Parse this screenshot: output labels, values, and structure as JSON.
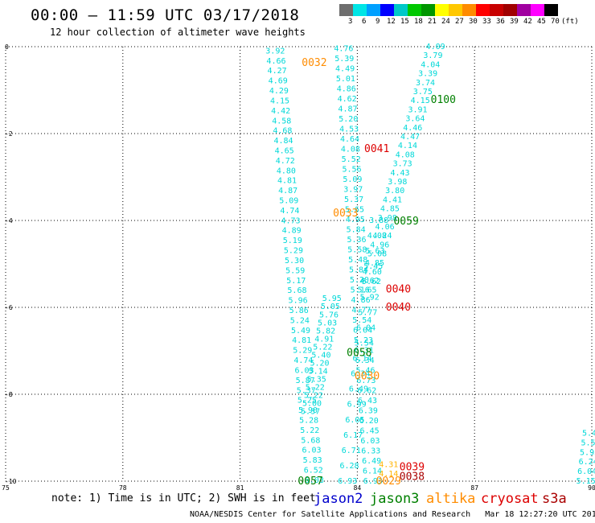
{
  "header": {
    "title": "00:00 – 11:59 UTC 03/17/2018",
    "subtitle": "12 hour collection of altimeter wave heights"
  },
  "colorbar": {
    "unit": "(ft)",
    "labels": [
      "3",
      "6",
      "9",
      "12",
      "15",
      "18",
      "21",
      "24",
      "27",
      "30",
      "33",
      "36",
      "39",
      "42",
      "45",
      "70"
    ],
    "colors": [
      "#6e6e6e",
      "#00e5e5",
      "#00a0ff",
      "#0000ff",
      "#00c8c8",
      "#00c800",
      "#009600",
      "#ffff00",
      "#ffc800",
      "#ff8c00",
      "#ff0000",
      "#c80000",
      "#a00000",
      "#a000a0",
      "#ff00ff",
      "#000000"
    ]
  },
  "map": {
    "lon_min": 75,
    "lon_max": 90,
    "lat_min": -10,
    "lat_max": 0,
    "x_ticks": [
      {
        "value": 75,
        "label": "75"
      },
      {
        "value": 78,
        "label": "78"
      },
      {
        "value": 81,
        "label": "81"
      },
      {
        "value": 84,
        "label": "84"
      },
      {
        "value": 87,
        "label": "87"
      },
      {
        "value": 90,
        "label": "90"
      }
    ],
    "y_ticks": [
      {
        "value": 0,
        "label": "0"
      },
      {
        "value": -2,
        "label": "-2"
      },
      {
        "value": -4,
        "label": "-4"
      },
      {
        "value": -6,
        "label": "-6"
      },
      {
        "value": -8,
        "label": "-8"
      },
      {
        "value": -10,
        "label": "-10"
      }
    ],
    "track_colors": {
      "jason2": "#0000cc",
      "jason3": "#008000",
      "altika": "#ff8c00",
      "cryosat": "#dd0000",
      "s3a": "#aa0000"
    },
    "track_labels": [
      {
        "text": "0032",
        "lon": 82.9,
        "lat": -0.37,
        "color": "#ff8c00"
      },
      {
        "text": "0100",
        "lon": 86.2,
        "lat": -1.22,
        "color": "#008000"
      },
      {
        "text": "0041",
        "lon": 84.5,
        "lat": -2.35,
        "color": "#dd0000"
      },
      {
        "text": "0033",
        "lon": 83.7,
        "lat": -3.83,
        "color": "#ff8c00"
      },
      {
        "text": "0059",
        "lon": 85.25,
        "lat": -4.02,
        "color": "#008000"
      },
      {
        "text": "0040",
        "lon": 85.05,
        "lat": -5.58,
        "color": "#dd0000"
      },
      {
        "text": "0040",
        "lon": 85.05,
        "lat": -6.0,
        "color": "#dd0000"
      },
      {
        "text": "0058",
        "lon": 84.05,
        "lat": -7.05,
        "color": "#008000"
      },
      {
        "text": "0030",
        "lon": 84.25,
        "lat": -7.58,
        "color": "#ff8c00"
      },
      {
        "text": "0039",
        "lon": 85.4,
        "lat": -9.68,
        "color": "#dd0000"
      },
      {
        "text": "0038",
        "lon": 85.4,
        "lat": -9.9,
        "color": "#aa0000"
      },
      {
        "text": "0057",
        "lon": 82.8,
        "lat": -10.0,
        "color": "#008000"
      },
      {
        "text": "0029",
        "lon": 84.8,
        "lat": -10.0,
        "color": "#ff8c00"
      }
    ],
    "sh_color": "#00d8d8",
    "sh_color_alt": "#ffb300",
    "tracks": [
      {
        "id": "left-track",
        "values": [
          "3.92",
          "4.66",
          "4.27",
          "4.69",
          "4.29",
          "4.15",
          "4.42",
          "4.58",
          "4.68",
          "4.84",
          "4.65",
          "4.72",
          "4.80",
          "4.81",
          "4.87",
          "5.09",
          "4.74",
          "4.73",
          "4.89",
          "5.19",
          "5.29",
          "5.30",
          "5.59",
          "5.17",
          "5.68",
          "5.96",
          "5.86",
          "5.24",
          "5.49",
          "4.81",
          "5.29",
          "4.74",
          "6.03",
          "5.87",
          "5.37",
          "5.25",
          "5.90",
          "5.28",
          "5.22",
          "5.68",
          "6.03",
          "5.83",
          "6.52",
          "6.03"
        ],
        "points": [
          {
            "lon": 81.9,
            "lat": -0.1
          },
          {
            "lon": 82.9,
            "lat": -9.98
          }
        ]
      },
      {
        "id": "center-left-track",
        "values": [
          "4.76",
          "5.39",
          "4.49",
          "5.01",
          "4.86",
          "4.62",
          "4.87",
          "5.20",
          "4.53",
          "4.64",
          "4.08",
          "5.52",
          "5.56",
          "5.09",
          "3.97",
          "5.37",
          "5.65",
          "4.95",
          "5.84",
          "5.36",
          "5.58",
          "5.48",
          "5.84",
          "5.20",
          "5.16",
          "4.86",
          "4.77",
          "5.54",
          "6.04",
          "5.23",
          "6.31",
          "6.34",
          "5.46",
          "6.73",
          "6.62",
          "6.43",
          "6.39",
          "6.20",
          "6.45",
          "6.03",
          "6.33",
          "6.49",
          "6.14",
          "6.93"
        ],
        "points": [
          {
            "lon": 83.65,
            "lat": -0.05
          },
          {
            "lon": 84.4,
            "lat": -10.0
          }
        ]
      },
      {
        "id": "center-track-2",
        "values": [
          "3.88",
          "4.08",
          "5.63",
          "5.45",
          "5.62",
          "5.92",
          "5.77",
          "6.04",
          "5.54",
          "6.14",
          "6.34",
          "6.49",
          "6.99",
          "6.05",
          "6.17",
          "6.71",
          "6.28",
          "6.93"
        ],
        "points": [
          {
            "lon": 84.55,
            "lat": -4.0
          },
          {
            "lon": 83.75,
            "lat": -10.0
          }
        ]
      },
      {
        "id": "right-ascending-track",
        "values": [
          "4.09",
          "3.79",
          "4.04",
          "3.39",
          "3.74",
          "3.75",
          "4.15",
          "3.91",
          "3.64",
          "4.46",
          "4.47",
          "4.14",
          "4.08",
          "3.73",
          "4.43",
          "3.98",
          "3.80",
          "4.41",
          "4.85",
          "3.98",
          "4.06",
          "4.24",
          "4.96",
          "5.08",
          "4.85",
          "4.60",
          "4.62",
          "5.65"
        ],
        "points": [
          {
            "lon": 86.0,
            "lat": 0.0
          },
          {
            "lon": 84.25,
            "lat": -5.6
          }
        ]
      },
      {
        "id": "center-right-track",
        "values": [
          "5.95",
          "5.05",
          "5.76",
          "5.03",
          "5.82",
          "4.91",
          "5.22",
          "5.40",
          "5.20",
          "5.14",
          "5.35",
          "5.22",
          "5.22",
          "5.00",
          "5.37"
        ],
        "points": [
          {
            "lon": 83.35,
            "lat": -5.8
          },
          {
            "lon": 82.8,
            "lat": -8.4
          }
        ]
      },
      {
        "id": "far-right-track",
        "values": [
          "5.15",
          "6.04",
          "6.24",
          "5.93",
          "5.53",
          "5.44"
        ],
        "points": [
          {
            "lon": 89.85,
            "lat": -10.0
          },
          {
            "lon": 90.0,
            "lat": -8.9
          }
        ]
      }
    ],
    "altika_values": [
      {
        "text": "4.31",
        "lon": 84.8,
        "lat": -9.62
      },
      {
        "text": "4.14",
        "lon": 84.8,
        "lat": -9.83
      }
    ]
  },
  "footer": {
    "note": "note: 1) Time is in UTC; 2) SWH is in feet",
    "satellites": [
      {
        "name": "jason2",
        "color": "#0000cc"
      },
      {
        "name": "jason3",
        "color": "#008000"
      },
      {
        "name": "altika",
        "color": "#ff8c00"
      },
      {
        "name": "cryosat",
        "color": "#dd0000"
      },
      {
        "name": "s3a",
        "color": "#aa0000"
      }
    ],
    "credit": "NOAA/NESDIS Center for Satellite Applications and Research   Mar 18 12:27:20 UTC 2018"
  }
}
